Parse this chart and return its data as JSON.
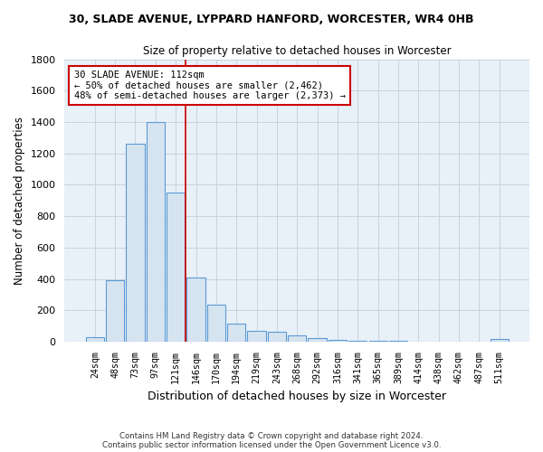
{
  "title1": "30, SLADE AVENUE, LYPPARD HANFORD, WORCESTER, WR4 0HB",
  "title2": "Size of property relative to detached houses in Worcester",
  "xlabel": "Distribution of detached houses by size in Worcester",
  "ylabel": "Number of detached properties",
  "bar_labels": [
    "24sqm",
    "48sqm",
    "73sqm",
    "97sqm",
    "121sqm",
    "146sqm",
    "170sqm",
    "194sqm",
    "219sqm",
    "243sqm",
    "268sqm",
    "292sqm",
    "316sqm",
    "341sqm",
    "365sqm",
    "389sqm",
    "414sqm",
    "438sqm",
    "462sqm",
    "487sqm",
    "511sqm"
  ],
  "bar_values": [
    30,
    390,
    1260,
    1400,
    950,
    410,
    235,
    115,
    70,
    65,
    42,
    20,
    10,
    8,
    5,
    3,
    2,
    1,
    1,
    1,
    15
  ],
  "bar_color": "#d6e4f0",
  "bar_edge_color": "#5b9bd5",
  "vline_x": 4.5,
  "annotation_title": "30 SLADE AVENUE: 112sqm",
  "annotation_line1": "← 50% of detached houses are smaller (2,462)",
  "annotation_line2": "48% of semi-detached houses are larger (2,373) →",
  "annotation_box_color": "#ffffff",
  "annotation_box_edge": "#cc0000",
  "vline_color": "#cc0000",
  "footer1": "Contains HM Land Registry data © Crown copyright and database right 2024.",
  "footer2": "Contains public sector information licensed under the Open Government Licence v3.0.",
  "ylim": [
    0,
    1800
  ],
  "yticks": [
    0,
    200,
    400,
    600,
    800,
    1000,
    1200,
    1400,
    1600,
    1800
  ],
  "grid_color": "#c8d4e0",
  "background_color": "#ffffff",
  "plot_bg_color": "#e8f0f8"
}
